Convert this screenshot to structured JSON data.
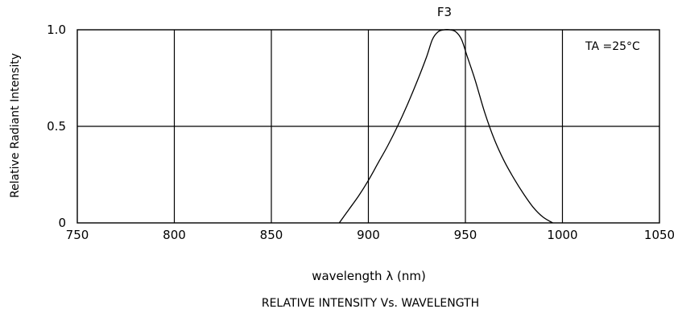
{
  "chart_data": {
    "type": "line",
    "title": "F3",
    "subtitle": "RELATIVE INTENSITY Vs. WAVELENGTH",
    "xlabel": "wavelength λ (nm)",
    "ylabel": "Relative Radiant Intensity",
    "annotation": "TA =25°C",
    "xlim": [
      750,
      1050
    ],
    "ylim": [
      0,
      1.0
    ],
    "x_ticks": [
      750,
      800,
      850,
      900,
      950,
      1000,
      1050
    ],
    "x_tick_labels": [
      "750",
      "800",
      "850",
      "900",
      "950",
      "1000",
      "1050"
    ],
    "y_ticks": [
      0,
      0.5,
      1.0
    ],
    "y_tick_labels": [
      "0",
      "0.5",
      "1.0"
    ],
    "grid": true,
    "series": [
      {
        "x": [
          885,
          890,
          895,
          900,
          905,
          910,
          915,
          920,
          925,
          930,
          933,
          936,
          939,
          942,
          945,
          948,
          951,
          955,
          960,
          965,
          970,
          975,
          980,
          985,
          990,
          995
        ],
        "y": [
          0.0,
          0.07,
          0.14,
          0.22,
          0.31,
          0.4,
          0.5,
          0.61,
          0.73,
          0.86,
          0.95,
          0.99,
          1.0,
          1.0,
          0.99,
          0.95,
          0.86,
          0.74,
          0.57,
          0.43,
          0.32,
          0.23,
          0.15,
          0.08,
          0.03,
          0.0
        ]
      }
    ]
  }
}
